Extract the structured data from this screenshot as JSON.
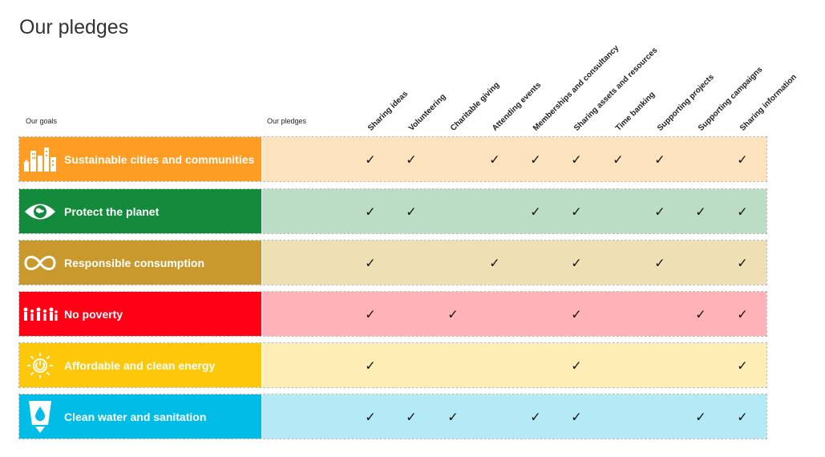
{
  "title": "Our pledges",
  "headers": {
    "goals": "Our goals",
    "pledges": "Our pledges"
  },
  "pledge_columns": [
    "Sharing ideas",
    "Volunteering",
    "Charitable giving",
    "Attending events",
    "Memberships and consultancy",
    "Sharing assets and resources",
    "Time banking",
    "Supporting projects",
    "Supporting campaigns",
    "Sharing information"
  ],
  "check_symbol": "✓",
  "goals": [
    {
      "label": "Sustainable cities and communities",
      "icon": "city-buildings-icon",
      "color": "#FD9D24",
      "tint": "#FDE3BD",
      "checks": [
        true,
        true,
        false,
        true,
        true,
        true,
        true,
        true,
        false,
        true
      ]
    },
    {
      "label": "Protect the planet",
      "icon": "eye-globe-icon",
      "color": "#148A3C",
      "tint": "#BCDDC5",
      "checks": [
        true,
        true,
        false,
        false,
        true,
        true,
        false,
        true,
        true,
        true
      ]
    },
    {
      "label": "Responsible consumption",
      "icon": "infinity-icon",
      "color": "#C9992D",
      "tint": "#EEDFB5",
      "checks": [
        true,
        false,
        false,
        true,
        false,
        true,
        false,
        true,
        false,
        true
      ]
    },
    {
      "label": "No poverty",
      "icon": "people-family-icon",
      "color": "#FF0015",
      "tint": "#FFB3B8",
      "checks": [
        true,
        false,
        true,
        false,
        false,
        true,
        false,
        false,
        true,
        true
      ]
    },
    {
      "label": "Affordable and clean energy",
      "icon": "sun-power-icon",
      "color": "#FDC70A",
      "tint": "#FEEDB5",
      "checks": [
        true,
        false,
        false,
        false,
        false,
        true,
        false,
        false,
        false,
        true
      ]
    },
    {
      "label": "Clean water and sanitation",
      "icon": "water-glass-icon",
      "color": "#00BDE8",
      "tint": "#B4E9F6",
      "checks": [
        true,
        true,
        true,
        false,
        true,
        true,
        false,
        false,
        true,
        true
      ]
    }
  ]
}
